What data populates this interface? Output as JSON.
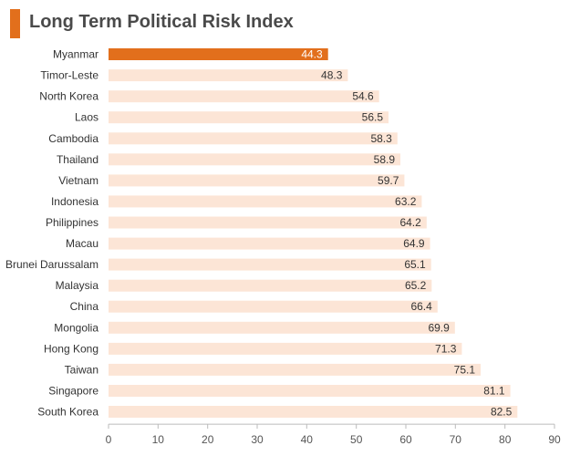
{
  "chart_data": {
    "type": "bar",
    "orientation": "horizontal",
    "title": "Long Term Political Risk Index",
    "categories": [
      "Myanmar",
      "Timor-Leste",
      "North Korea",
      "Laos",
      "Cambodia",
      "Thailand",
      "Vietnam",
      "Indonesia",
      "Philippines",
      "Macau",
      "Brunei Darussalam",
      "Malaysia",
      "China",
      "Mongolia",
      "Hong Kong",
      "Taiwan",
      "Singapore",
      "South Korea"
    ],
    "values": [
      44.3,
      48.3,
      54.6,
      56.5,
      58.3,
      58.9,
      59.7,
      63.2,
      64.2,
      64.9,
      65.1,
      65.2,
      66.4,
      69.9,
      71.3,
      75.1,
      81.1,
      82.5
    ],
    "value_labels": [
      "44.3",
      "48.3",
      "54.6",
      "56.5",
      "58.3",
      "58.9",
      "59.7",
      "63.2",
      "64.2",
      "64.9",
      "65.1",
      "65.2",
      "66.4",
      "69.9",
      "71.3",
      "75.1",
      "81.1",
      "82.5"
    ],
    "highlight_index": 0,
    "xlim": [
      0,
      90
    ],
    "xticks": [
      "0",
      "10",
      "20",
      "30",
      "40",
      "50",
      "60",
      "70",
      "80",
      "90"
    ],
    "xlabel": "",
    "ylabel": "",
    "grid": false,
    "colors": {
      "highlight": "#e26f1c",
      "bar": "#fce5d6",
      "accent": "#e26f1c"
    }
  }
}
